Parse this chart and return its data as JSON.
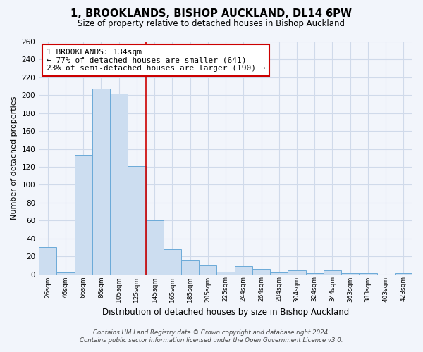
{
  "title": "1, BROOKLANDS, BISHOP AUCKLAND, DL14 6PW",
  "subtitle": "Size of property relative to detached houses in Bishop Auckland",
  "xlabel": "Distribution of detached houses by size in Bishop Auckland",
  "ylabel": "Number of detached properties",
  "bar_labels": [
    "26sqm",
    "46sqm",
    "66sqm",
    "86sqm",
    "105sqm",
    "125sqm",
    "145sqm",
    "165sqm",
    "185sqm",
    "205sqm",
    "225sqm",
    "244sqm",
    "264sqm",
    "284sqm",
    "304sqm",
    "324sqm",
    "344sqm",
    "363sqm",
    "383sqm",
    "403sqm",
    "423sqm"
  ],
  "bar_values": [
    30,
    2,
    133,
    207,
    202,
    121,
    60,
    28,
    15,
    10,
    3,
    9,
    6,
    2,
    4,
    1,
    4,
    1,
    1,
    0,
    1
  ],
  "bar_color": "#ccddf0",
  "bar_edge_color": "#6baad8",
  "property_line_x": 5.5,
  "property_line_color": "#cc0000",
  "annotation_text": "1 BROOKLANDS: 134sqm\n← 77% of detached houses are smaller (641)\n23% of semi-detached houses are larger (190) →",
  "annotation_box_color": "#ffffff",
  "annotation_box_edge": "#cc0000",
  "ylim": [
    0,
    260
  ],
  "yticks": [
    0,
    20,
    40,
    60,
    80,
    100,
    120,
    140,
    160,
    180,
    200,
    220,
    240,
    260
  ],
  "footer_line1": "Contains HM Land Registry data © Crown copyright and database right 2024.",
  "footer_line2": "Contains public sector information licensed under the Open Government Licence v3.0.",
  "background_color": "#f2f5fb",
  "grid_color": "#d0daea"
}
